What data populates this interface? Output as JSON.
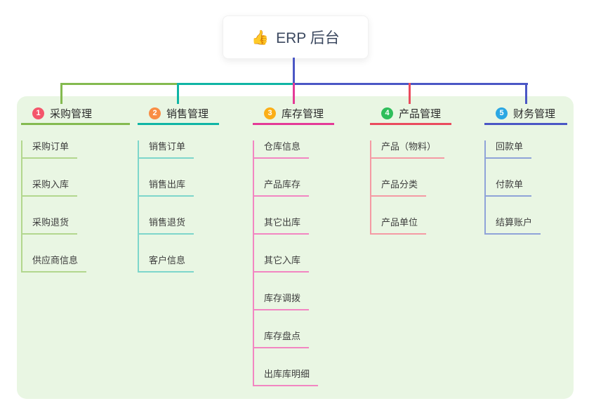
{
  "root": {
    "label": "ERP 后台",
    "emoji": "👍",
    "icon": "thumbs-up-icon"
  },
  "branches": [
    {
      "number": "1",
      "label": "采购管理",
      "color": "#84ba50",
      "light_color": "#b2d78e",
      "badge_color": "#f4566b",
      "items": [
        "采购订单",
        "采购入库",
        "采购退货",
        "供应商信息"
      ]
    },
    {
      "number": "2",
      "label": "销售管理",
      "color": "#0fb5a5",
      "light_color": "#7dd6cb",
      "badge_color": "#f98d44",
      "items": [
        "销售订单",
        "销售出库",
        "销售退货",
        "客户信息"
      ]
    },
    {
      "number": "3",
      "label": "库存管理",
      "color": "#e43a97",
      "light_color": "#f286c2",
      "badge_color": "#fbae17",
      "items": [
        "仓库信息",
        "产品库存",
        "其它出库",
        "其它入库",
        "库存调拨",
        "库存盘点",
        "出库库明细"
      ]
    },
    {
      "number": "4",
      "label": "产品管理",
      "color": "#ea4b5e",
      "light_color": "#f59aa4",
      "badge_color": "#2fbe5b",
      "items": [
        "产品（物料）",
        "产品分类",
        "产品单位"
      ]
    },
    {
      "number": "5",
      "label": "财务管理",
      "color": "#4b57c5",
      "light_color": "#8fa3d8",
      "badge_color": "#2ba7e3",
      "items": [
        "回款单",
        "付款单",
        "结算账户"
      ]
    }
  ],
  "colors": {
    "panel_bg": "#e9f6e3",
    "root_line": "#4b57c5",
    "text": "#3d3d3d"
  }
}
